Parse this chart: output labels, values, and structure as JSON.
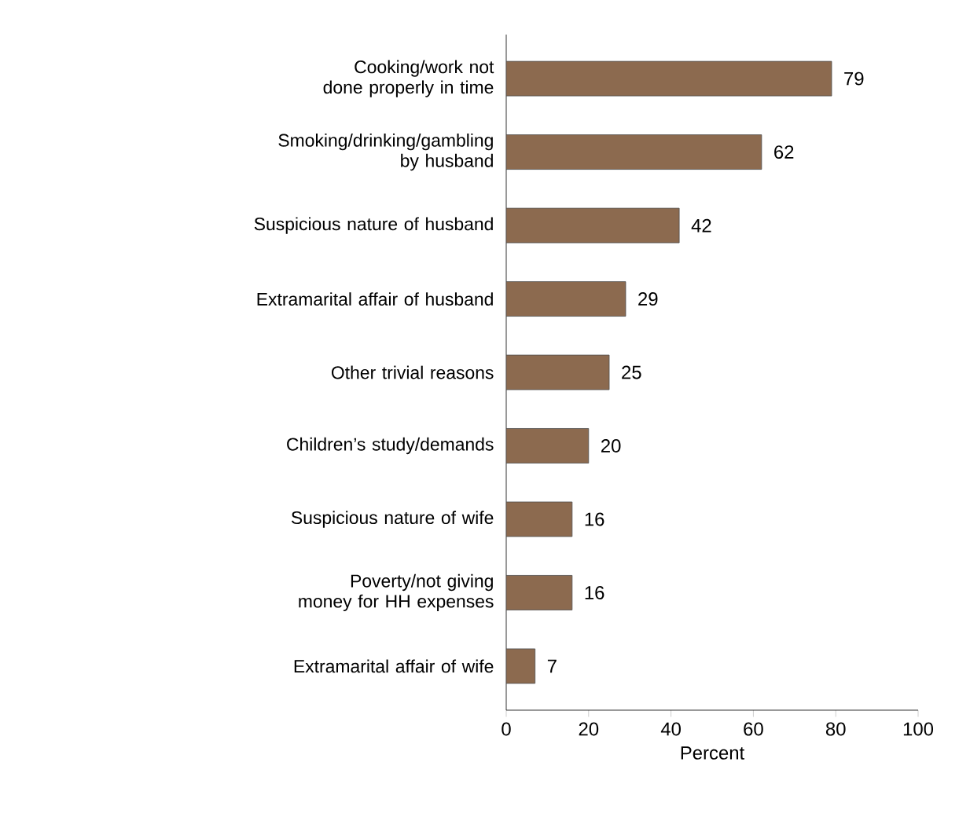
{
  "chart_data": {
    "type": "bar",
    "orientation": "horizontal",
    "xlabel": "Percent",
    "categories": [
      "Cooking/work not done properly in time",
      "Smoking/drinking/gambling by husband",
      "Suspicious nature of husband",
      "Extramarital affair of husband",
      "Other trivial reasons",
      "Children’s study/demands",
      "Suspicious nature of wife",
      "Poverty/not giving money for HH expenses",
      "Extramarital affair of wife"
    ],
    "values": [
      79,
      62,
      42,
      29,
      25,
      20,
      16,
      16,
      7
    ],
    "color": "#8c6a4f",
    "xlim": [
      0,
      100
    ],
    "xticks": [
      0,
      20,
      40,
      60,
      80,
      100
    ],
    "data_labels": true,
    "grid": false
  }
}
